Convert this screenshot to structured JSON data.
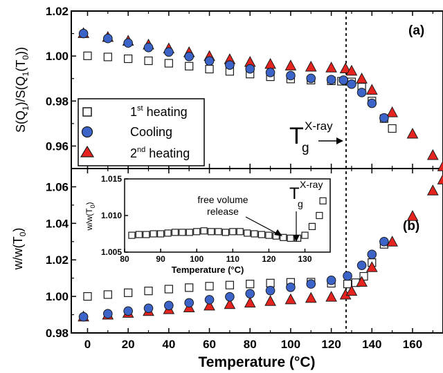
{
  "chart_data": [
    {
      "type": "scatter",
      "panel_label": "(a)",
      "ylabel": "S(Q1)/S(Q1(T0))",
      "xlim": [
        -8,
        175
      ],
      "ylim": [
        0.95,
        1.02
      ],
      "xticks": [
        "0",
        "20",
        "40",
        "60",
        "80",
        "100",
        "120",
        "140",
        "160"
      ],
      "yticks": [
        "0.96",
        "0.98",
        "1.00",
        "1.02"
      ],
      "legend": {
        "placement": "bottom-left",
        "entries": [
          {
            "marker": "square",
            "text": "1st heating"
          },
          {
            "marker": "circle",
            "text": "Cooling"
          },
          {
            "marker": "triangle",
            "text": "2nd heating"
          }
        ]
      },
      "annotation": {
        "text": "Tg X-ray",
        "arrow": "right"
      },
      "dashed_vline_x": 127,
      "series": [
        {
          "name": "1st heating",
          "marker": "open-square",
          "points": [
            [
              0,
              1.0001
            ],
            [
              10,
              0.9996
            ],
            [
              20,
              0.9988
            ],
            [
              30,
              0.9979
            ],
            [
              40,
              0.9968
            ],
            [
              50,
              0.9955
            ],
            [
              60,
              0.9942
            ],
            [
              70,
              0.9932
            ],
            [
              80,
              0.992
            ],
            [
              90,
              0.9908
            ],
            [
              100,
              0.9898
            ],
            [
              110,
              0.9893
            ],
            [
              120,
              0.989
            ],
            [
              125,
              0.9888
            ],
            [
              130,
              0.9885
            ],
            [
              135,
              0.9862
            ],
            [
              140,
              0.98
            ],
            [
              146,
              0.9722
            ],
            [
              150,
              0.9678
            ]
          ]
        },
        {
          "name": "Cooling",
          "marker": "blue-circle",
          "points": [
            [
              -2,
              1.01
            ],
            [
              10,
              1.0078
            ],
            [
              20,
              1.0058
            ],
            [
              30,
              1.0038
            ],
            [
              40,
              1.0018
            ],
            [
              50,
              0.9998
            ],
            [
              60,
              0.9978
            ],
            [
              70,
              0.996
            ],
            [
              80,
              0.9943
            ],
            [
              90,
              0.9927
            ],
            [
              100,
              0.9913
            ],
            [
              110,
              0.9901
            ],
            [
              120,
              0.9895
            ],
            [
              126,
              0.9893
            ],
            [
              130,
              0.9875
            ],
            [
              135,
              0.9838
            ],
            [
              140,
              0.979
            ],
            [
              146,
              0.9725
            ]
          ]
        },
        {
          "name": "2nd heating",
          "marker": "red-triangle",
          "points": [
            [
              -2,
              1.0102
            ],
            [
              10,
              1.0085
            ],
            [
              20,
              1.0068
            ],
            [
              30,
              1.0051
            ],
            [
              40,
              1.0034
            ],
            [
              50,
              1.0017
            ],
            [
              60,
              1.0
            ],
            [
              70,
              0.9986
            ],
            [
              80,
              0.9974
            ],
            [
              90,
              0.9965
            ],
            [
              100,
              0.9958
            ],
            [
              110,
              0.9953
            ],
            [
              120,
              0.9949
            ],
            [
              127,
              0.9945
            ],
            [
              130,
              0.9935
            ],
            [
              135,
              0.99
            ],
            [
              140,
              0.985
            ],
            [
              150,
              0.975
            ],
            [
              160,
              0.9655
            ],
            [
              170,
              0.956
            ],
            [
              175,
              0.951
            ]
          ]
        }
      ]
    },
    {
      "type": "scatter",
      "panel_label": "(b)",
      "ylabel": "w/w(T0)",
      "xlabel": "Temperature (°C)",
      "xlim": [
        -8,
        175
      ],
      "ylim": [
        0.98,
        1.07
      ],
      "xticks": [
        "0",
        "20",
        "40",
        "60",
        "80",
        "100",
        "120",
        "140",
        "160"
      ],
      "yticks": [
        "0.98",
        "1.00",
        "1.02",
        "1.04",
        "1.06"
      ],
      "dashed_vline_x": 127,
      "series": [
        {
          "name": "1st heating",
          "marker": "open-square",
          "points": [
            [
              0,
              1.0
            ],
            [
              10,
              1.001
            ],
            [
              20,
              1.002
            ],
            [
              30,
              1.003
            ],
            [
              40,
              1.004
            ],
            [
              50,
              1.0048
            ],
            [
              60,
              1.0056
            ],
            [
              70,
              1.0062
            ],
            [
              80,
              1.0068
            ],
            [
              90,
              1.0073
            ],
            [
              100,
              1.0077
            ],
            [
              110,
              1.0078
            ],
            [
              120,
              1.0072
            ],
            [
              128,
              1.0068
            ],
            [
              132,
              1.0075
            ],
            [
              136,
              1.011
            ],
            [
              140,
              1.0185
            ],
            [
              146,
              1.0285
            ]
          ]
        },
        {
          "name": "Cooling",
          "marker": "blue-circle",
          "points": [
            [
              -2,
              0.9888
            ],
            [
              10,
              0.9905
            ],
            [
              20,
              0.992
            ],
            [
              30,
              0.9935
            ],
            [
              40,
              0.995
            ],
            [
              50,
              0.9965
            ],
            [
              60,
              0.9982
            ],
            [
              70,
              0.9998
            ],
            [
              80,
              1.0015
            ],
            [
              90,
              1.0032
            ],
            [
              100,
              1.005
            ],
            [
              110,
              1.0068
            ],
            [
              120,
              1.0088
            ],
            [
              128,
              1.0112
            ],
            [
              135,
              1.017
            ],
            [
              140,
              1.023
            ],
            [
              146,
              1.03
            ]
          ]
        },
        {
          "name": "2nd heating",
          "marker": "red-triangle",
          "points": [
            [
              -2,
              0.989
            ],
            [
              10,
              0.99
            ],
            [
              20,
              0.991
            ],
            [
              30,
              0.992
            ],
            [
              40,
              0.993
            ],
            [
              50,
              0.994
            ],
            [
              60,
              0.995
            ],
            [
              70,
              0.9958
            ],
            [
              80,
              0.9966
            ],
            [
              90,
              0.9975
            ],
            [
              100,
              0.9984
            ],
            [
              110,
              0.9992
            ],
            [
              120,
              0.9998
            ],
            [
              127,
              1.001
            ],
            [
              130,
              1.003
            ],
            [
              135,
              1.008
            ],
            [
              140,
              1.016
            ],
            [
              150,
              1.03
            ],
            [
              160,
              1.044
            ],
            [
              170,
              1.058
            ],
            [
              175,
              1.064
            ]
          ]
        }
      ]
    },
    {
      "type": "scatter",
      "role": "inset",
      "ylabel": "w/w(T0)",
      "xlabel": "Temperature (°C)",
      "xlim": [
        80,
        137
      ],
      "ylim": [
        1.005,
        1.015
      ],
      "xticks": [
        "80",
        "90",
        "100",
        "110",
        "120",
        "130"
      ],
      "yticks": [
        "1.005",
        "1.010",
        "1.015"
      ],
      "annotations": [
        {
          "text": "free volume release",
          "arrow_to": [
            126,
            1.0073
          ]
        },
        {
          "text": "Tg X-ray",
          "arrow_to": [
            128,
            1.007
          ]
        }
      ],
      "series": [
        {
          "name": "1st heating",
          "marker": "open-square",
          "points": [
            [
              82,
              1.0073
            ],
            [
              84,
              1.0074
            ],
            [
              86,
              1.0074
            ],
            [
              88,
              1.0075
            ],
            [
              90,
              1.0075
            ],
            [
              92,
              1.0076
            ],
            [
              94,
              1.0077
            ],
            [
              96,
              1.0077
            ],
            [
              98,
              1.0077
            ],
            [
              100,
              1.0078
            ],
            [
              102,
              1.0079
            ],
            [
              104,
              1.0078
            ],
            [
              106,
              1.0078
            ],
            [
              108,
              1.0077
            ],
            [
              110,
              1.0078
            ],
            [
              112,
              1.0078
            ],
            [
              114,
              1.0076
            ],
            [
              116,
              1.0075
            ],
            [
              118,
              1.0074
            ],
            [
              120,
              1.0073
            ],
            [
              122,
              1.0072
            ],
            [
              124,
              1.007
            ],
            [
              126,
              1.0069
            ],
            [
              128,
              1.0069
            ],
            [
              130,
              1.0073
            ],
            [
              132,
              1.0085
            ],
            [
              134,
              1.01
            ],
            [
              135,
              1.012
            ]
          ]
        }
      ]
    }
  ],
  "text": {
    "legend_1st_base": "1",
    "legend_1st_sup": "st",
    "legend_1st_rest": " heating",
    "legend_cooling": "Cooling",
    "legend_2nd_base": "2",
    "legend_2nd_sup": "nd",
    "legend_2nd_rest": " heating",
    "ylabel_a_1": "S(Q",
    "ylabel_a_sub1": "1",
    "ylabel_a_2": ")/S(Q",
    "ylabel_a_sub2": "1",
    "ylabel_a_3": "(T",
    "ylabel_a_sub3": "0",
    "ylabel_a_4": "))",
    "ylabel_b_1": "w/w(T",
    "ylabel_b_sub": "0",
    "ylabel_b_2": ")",
    "inset_ylabel_1": "w/w(T",
    "inset_ylabel_sub": "0",
    "inset_ylabel_2": ")",
    "xlabel": "Temperature (°C)",
    "inset_xlabel": "Temperature (°C)",
    "tg_T": "T",
    "tg_g": "g",
    "tg_sup": "X-ray",
    "free_volume_1": "free volume",
    "free_volume_2": "release",
    "panel_a": "(a)",
    "panel_b": "(b)"
  },
  "colors": {
    "cooling_fill": "#3b63c8",
    "heating2_fill": "#e52420",
    "heating1_fill": "#ffffff",
    "marker_stroke": "#1a1a1a",
    "axis": "#000000"
  }
}
